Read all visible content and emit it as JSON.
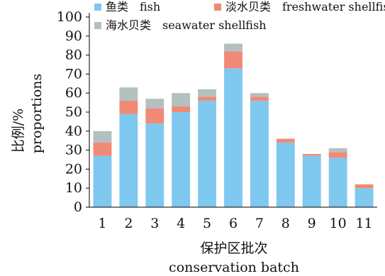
{
  "chart_data": {
    "type": "bar",
    "stacked": true,
    "xlabel": [
      "保护区批次",
      "conservation batch"
    ],
    "ylabel": [
      "比例/%",
      "proportions"
    ],
    "ylim": [
      0,
      100
    ],
    "yticks": [
      0,
      10,
      20,
      30,
      40,
      50,
      60,
      70,
      80,
      90,
      100
    ],
    "categories": [
      "1",
      "2",
      "3",
      "4",
      "5",
      "6",
      "7",
      "8",
      "9",
      "10",
      "11"
    ],
    "series": [
      {
        "name": "鱼类 fish",
        "color": "#7fc8ef",
        "values": [
          27,
          49,
          44,
          50,
          56,
          73,
          56,
          34,
          27,
          26,
          10
        ]
      },
      {
        "name": "淡水贝类 freshwater shellfish",
        "color": "#f08a76",
        "values": [
          7,
          7,
          8,
          3,
          2,
          9,
          2,
          2,
          1,
          3,
          2
        ]
      },
      {
        "name": "海水贝类 seawater shellfish",
        "color": "#b4c0c0",
        "values": [
          6,
          7,
          5,
          7,
          4,
          4,
          2,
          0,
          0,
          2,
          0
        ]
      }
    ],
    "legend_position": "top"
  }
}
